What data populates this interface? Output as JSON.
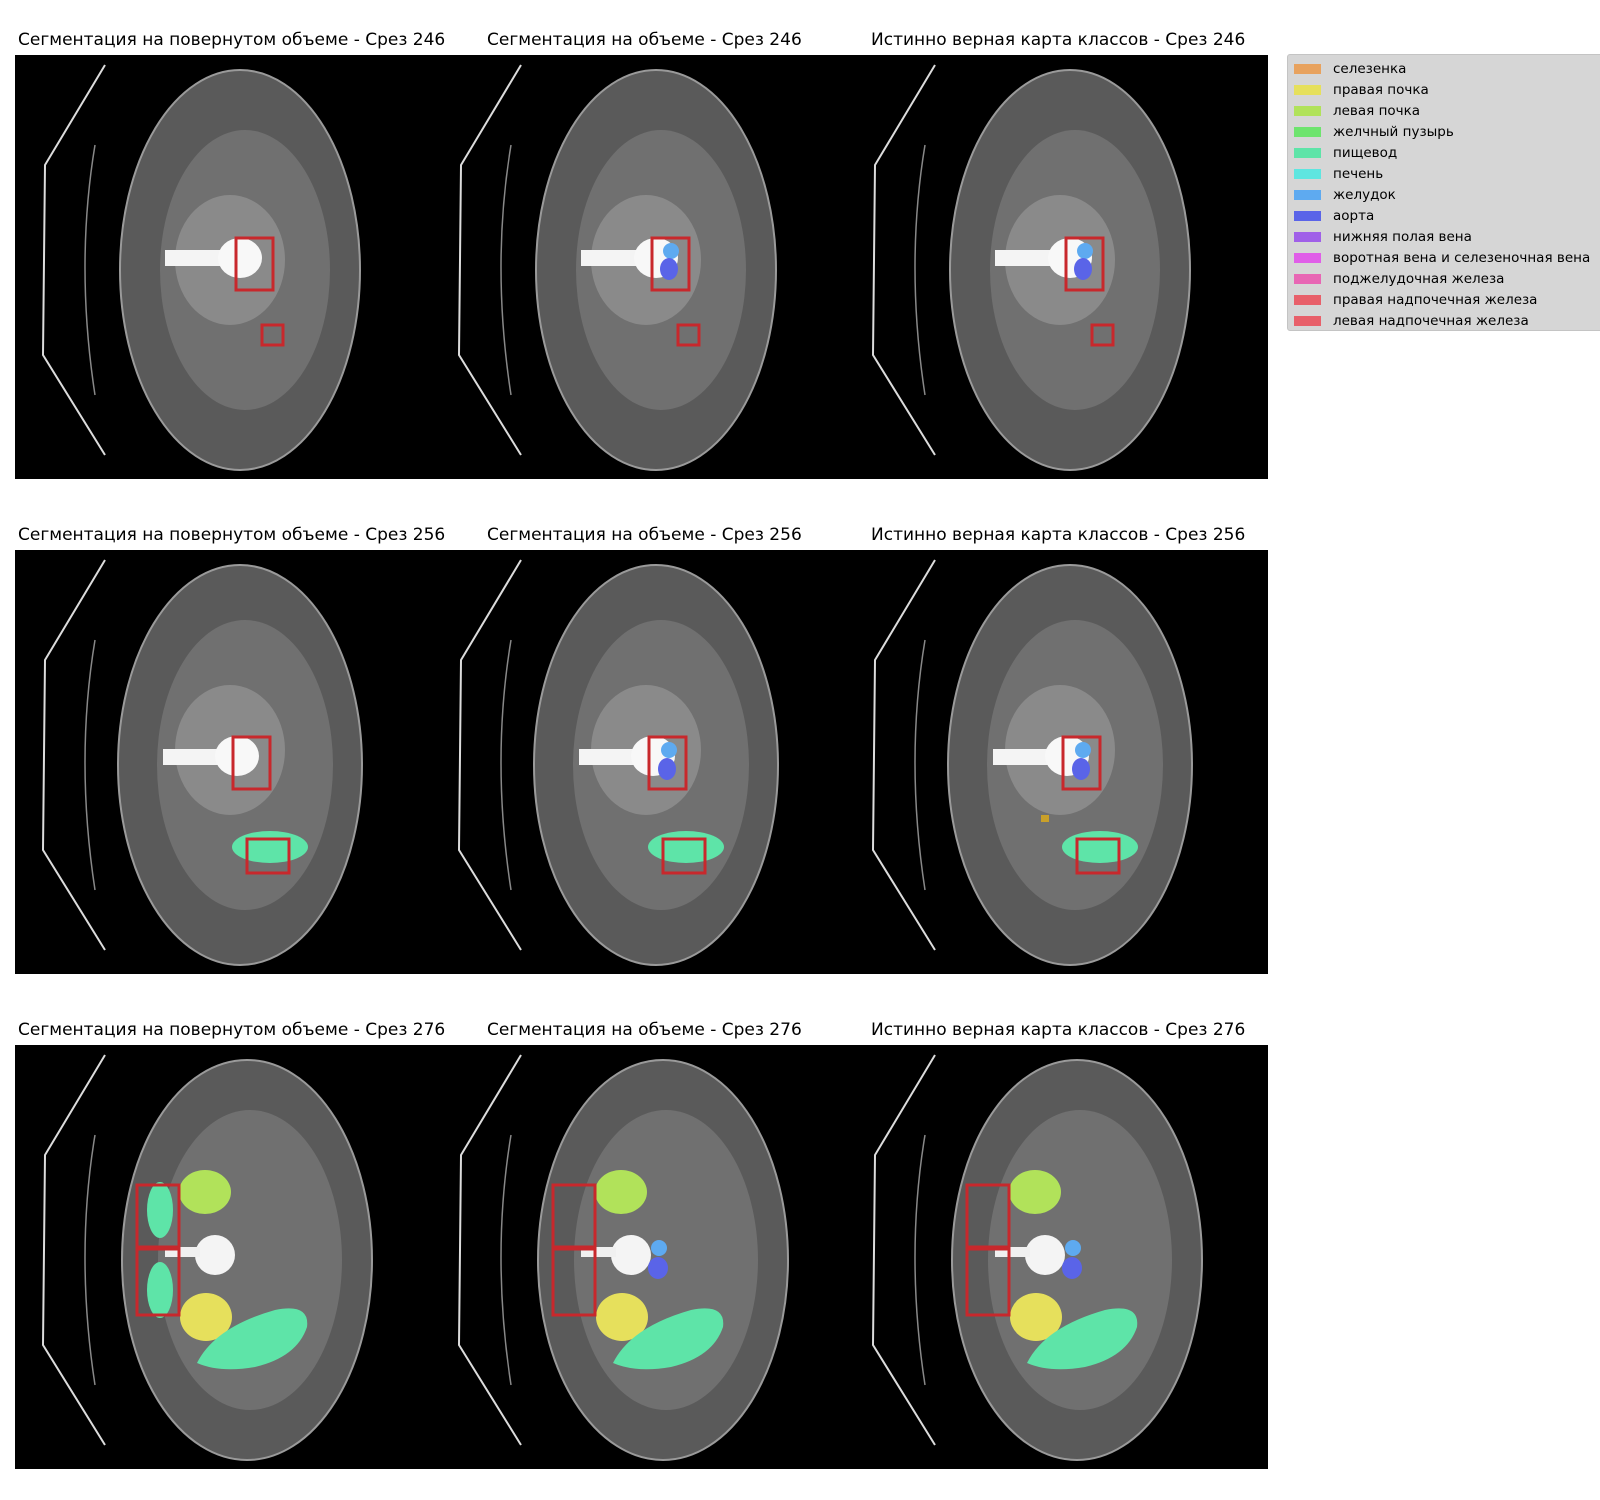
{
  "rows": [
    {
      "titles": [
        "Сегментация на повернутом объеме - Срез 246",
        "Сегментация на объеме - Срез 246",
        "Истинно верная карта классов - Срез 246"
      ]
    },
    {
      "titles": [
        "Сегментация на повернутом объеме - Срез 256",
        "Сегментация на объеме - Срез 256",
        "Истинно верная карта классов - Срез 256"
      ]
    },
    {
      "titles": [
        "Сегментация на повернутом объеме - Срез 276",
        "Сегментация на объеме - Срез 276",
        "Истинно верная карта классов - Срез 276"
      ]
    }
  ],
  "legend": {
    "items": [
      {
        "label": "селезенка",
        "color": "#e8a25e"
      },
      {
        "label": "правая почка",
        "color": "#e6e05c"
      },
      {
        "label": "левая почка",
        "color": "#b1e25a"
      },
      {
        "label": "желчный пузырь",
        "color": "#6ee46e"
      },
      {
        "label": "пищевод",
        "color": "#5ee4a8"
      },
      {
        "label": "печень",
        "color": "#5ee6e0"
      },
      {
        "label": "желудок",
        "color": "#5eaaf0"
      },
      {
        "label": "аорта",
        "color": "#5a64e8"
      },
      {
        "label": "нижняя полая вена",
        "color": "#a060e8"
      },
      {
        "label": "воротная вена и селезеночная вена",
        "color": "#e05ee8"
      },
      {
        "label": "поджелудочная железа",
        "color": "#e866b4"
      },
      {
        "label": "правая надпочечная железа",
        "color": "#e8606a"
      },
      {
        "label": "левая надпочечная железа",
        "color": "#e8606a"
      }
    ]
  },
  "box_color": "#c8282c"
}
